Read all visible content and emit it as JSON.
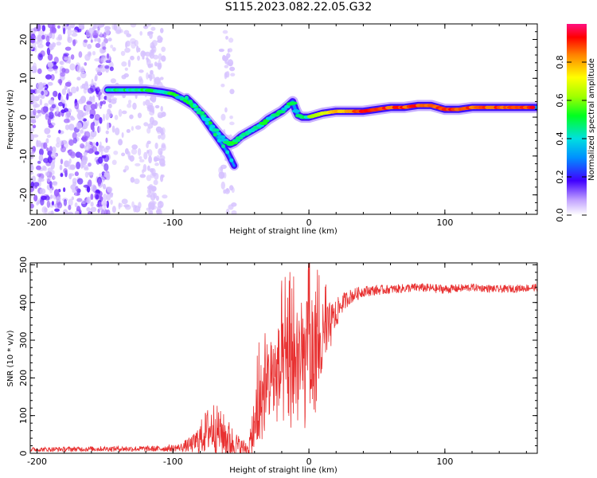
{
  "title": "S115.2023.082.22.05.G32",
  "chart_data": [
    {
      "type": "heatmap",
      "name": "spectrogram",
      "xlabel": "Height of straight line (km)",
      "ylabel": "Frequency (Hz)",
      "xlim": [
        -205,
        168
      ],
      "ylim": [
        -25,
        24
      ],
      "xticks": [
        -200,
        -100,
        0,
        100
      ],
      "yticks": [
        -20,
        -10,
        0,
        10,
        20
      ],
      "colorbar": {
        "label": "Normalized spectral amplitude",
        "range": [
          0,
          1
        ],
        "ticks": [
          0.0,
          0.2,
          0.4,
          0.6,
          0.8
        ]
      },
      "ridge": {
        "x": [
          -148,
          -135,
          -120,
          -108,
          -100,
          -92,
          -85,
          -78,
          -72,
          -66,
          -62,
          -58,
          -55,
          -50,
          -45,
          -40,
          -35,
          -30,
          -25,
          -20,
          -15,
          -12,
          -10,
          -8,
          -5,
          0,
          10,
          20,
          30,
          40,
          50,
          60,
          70,
          80,
          90,
          100,
          110,
          120,
          130,
          140,
          150,
          160,
          168
        ],
        "y": [
          7,
          7,
          7,
          6.5,
          6,
          4.5,
          3,
          0.5,
          -2,
          -4.5,
          -6,
          -7,
          -6.5,
          -5,
          -4,
          -3,
          -2,
          -0.5,
          0.5,
          1.5,
          3,
          4,
          2,
          0.5,
          0,
          0,
          1,
          1.5,
          1.5,
          1.5,
          2,
          2.5,
          2.5,
          3,
          3,
          2,
          2,
          2.5,
          2.5,
          2.5,
          2.5,
          2.5,
          2.5
        ]
      },
      "branch": {
        "x": [
          -90,
          -84,
          -78,
          -72,
          -66,
          -60,
          -55
        ],
        "y": [
          5,
          3,
          0,
          -3,
          -6,
          -9,
          -12.5
        ]
      }
    },
    {
      "type": "line",
      "name": "snr",
      "xlabel": "Height of straight line (km)",
      "ylabel": "SNR (10 * v/v)",
      "xlim": [
        -205,
        168
      ],
      "ylim": [
        0,
        505
      ],
      "xticks": [
        -200,
        -100,
        0,
        100
      ],
      "yticks": [
        0,
        100,
        200,
        300,
        400,
        500
      ],
      "color": "#e83030",
      "envelope": {
        "x": [
          -205,
          -150,
          -110,
          -95,
          -85,
          -80,
          -75,
          -70,
          -65,
          -60,
          -55,
          -50,
          -45,
          -40,
          -38,
          -35,
          -32,
          -30,
          -25,
          -20,
          -15,
          -10,
          -5,
          0,
          5,
          10,
          15,
          20,
          25,
          30,
          40,
          60,
          80,
          100,
          120,
          140,
          168
        ],
        "base": [
          10,
          12,
          12,
          15,
          25,
          40,
          60,
          70,
          55,
          40,
          25,
          15,
          15,
          50,
          100,
          140,
          170,
          190,
          205,
          210,
          220,
          225,
          230,
          240,
          260,
          290,
          330,
          370,
          400,
          415,
          430,
          435,
          440,
          435,
          440,
          435,
          440
        ],
        "amp": [
          6,
          7,
          8,
          10,
          25,
          45,
          60,
          70,
          60,
          55,
          40,
          25,
          20,
          60,
          110,
          110,
          120,
          120,
          130,
          140,
          160,
          170,
          175,
          170,
          150,
          110,
          70,
          40,
          25,
          20,
          15,
          12,
          12,
          12,
          10,
          10,
          10
        ]
      }
    }
  ]
}
